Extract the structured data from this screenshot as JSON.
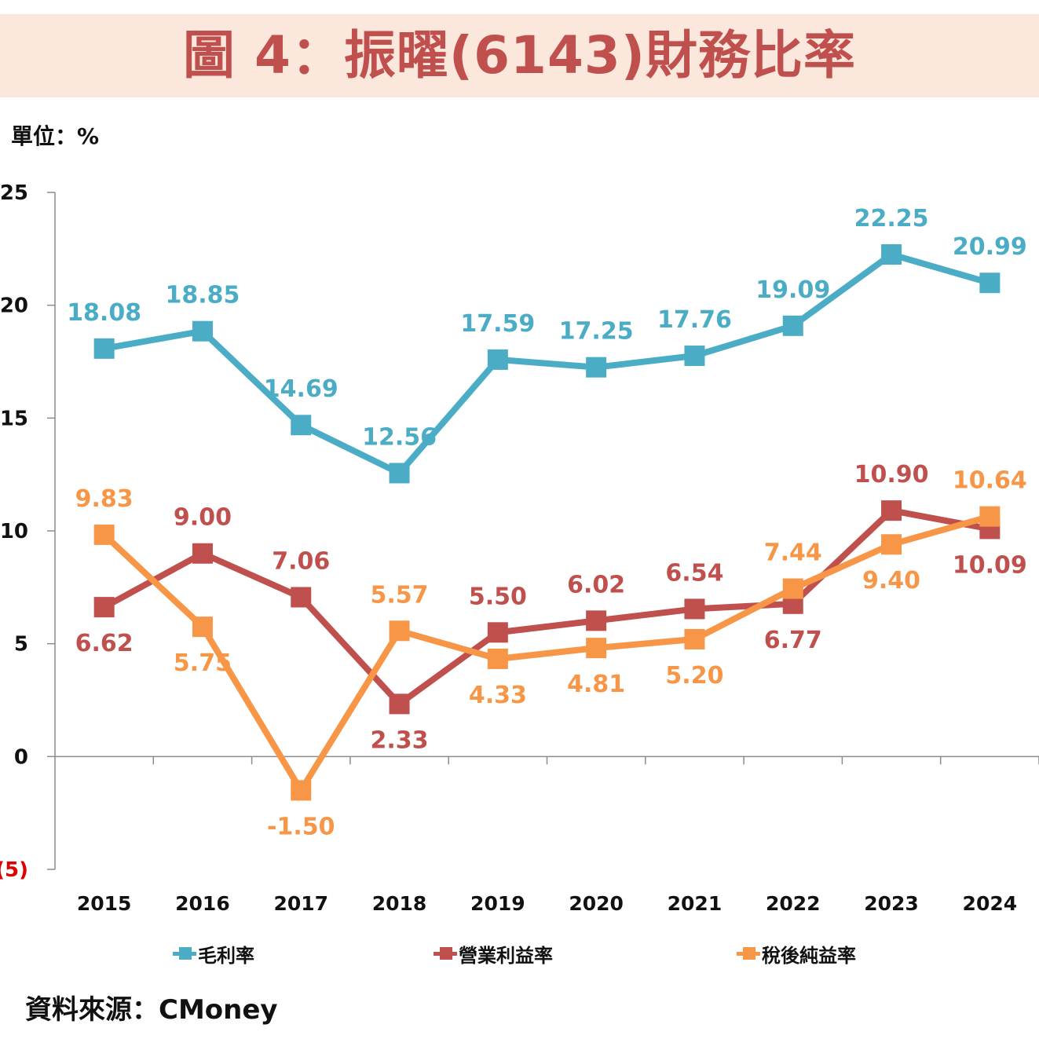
{
  "title": "圖 4：振曜(6143)財務比率",
  "unit_label": "單位：%",
  "source": "資料來源：CMoney",
  "chart_data": {
    "type": "line",
    "title": "圖 4：振曜(6143)財務比率",
    "xlabel": "",
    "ylabel": "單位：%",
    "categories": [
      "2015",
      "2016",
      "2017",
      "2018",
      "2019",
      "2020",
      "2021",
      "2022",
      "2023",
      "2024"
    ],
    "ylim": [
      -5,
      25
    ],
    "yticks": [
      25,
      20,
      15,
      10,
      5,
      0,
      -5
    ],
    "ytick_labels": [
      "25",
      "20",
      "15",
      "10",
      "5",
      "0",
      "(5)"
    ],
    "grid": false,
    "legend": "bottom",
    "series": [
      {
        "name": "毛利率",
        "color": "#4bacc6",
        "values": [
          18.08,
          18.85,
          14.69,
          12.56,
          17.59,
          17.25,
          17.76,
          19.09,
          22.25,
          20.99
        ],
        "labels": [
          "18.08",
          "18.85",
          "14.69",
          "12.56",
          "17.59",
          "17.25",
          "17.76",
          "19.09",
          "22.25",
          "20.99"
        ],
        "label_pos": [
          "above",
          "above",
          "above",
          "above",
          "above",
          "above",
          "above",
          "above",
          "above",
          "above"
        ]
      },
      {
        "name": "營業利益率",
        "color": "#c0504d",
        "values": [
          6.62,
          9.0,
          7.06,
          2.33,
          5.5,
          6.02,
          6.54,
          6.77,
          10.9,
          10.09
        ],
        "labels": [
          "6.62",
          "9.00",
          "7.06",
          "2.33",
          "5.50",
          "6.02",
          "6.54",
          "6.77",
          "10.90",
          "10.09"
        ],
        "label_pos": [
          "below",
          "above",
          "above",
          "below",
          "above",
          "above",
          "above",
          "below",
          "above",
          "below"
        ]
      },
      {
        "name": "稅後純益率",
        "color": "#f79646",
        "values": [
          9.83,
          5.75,
          -1.5,
          5.57,
          4.33,
          4.81,
          5.2,
          7.44,
          9.4,
          10.64
        ],
        "labels": [
          "9.83",
          "5.75",
          "-1.50",
          "5.57",
          "4.33",
          "4.81",
          "5.20",
          "7.44",
          "9.40",
          "10.64"
        ],
        "label_pos": [
          "above",
          "below",
          "below",
          "above",
          "below",
          "below",
          "below",
          "above",
          "below",
          "above"
        ]
      }
    ]
  }
}
